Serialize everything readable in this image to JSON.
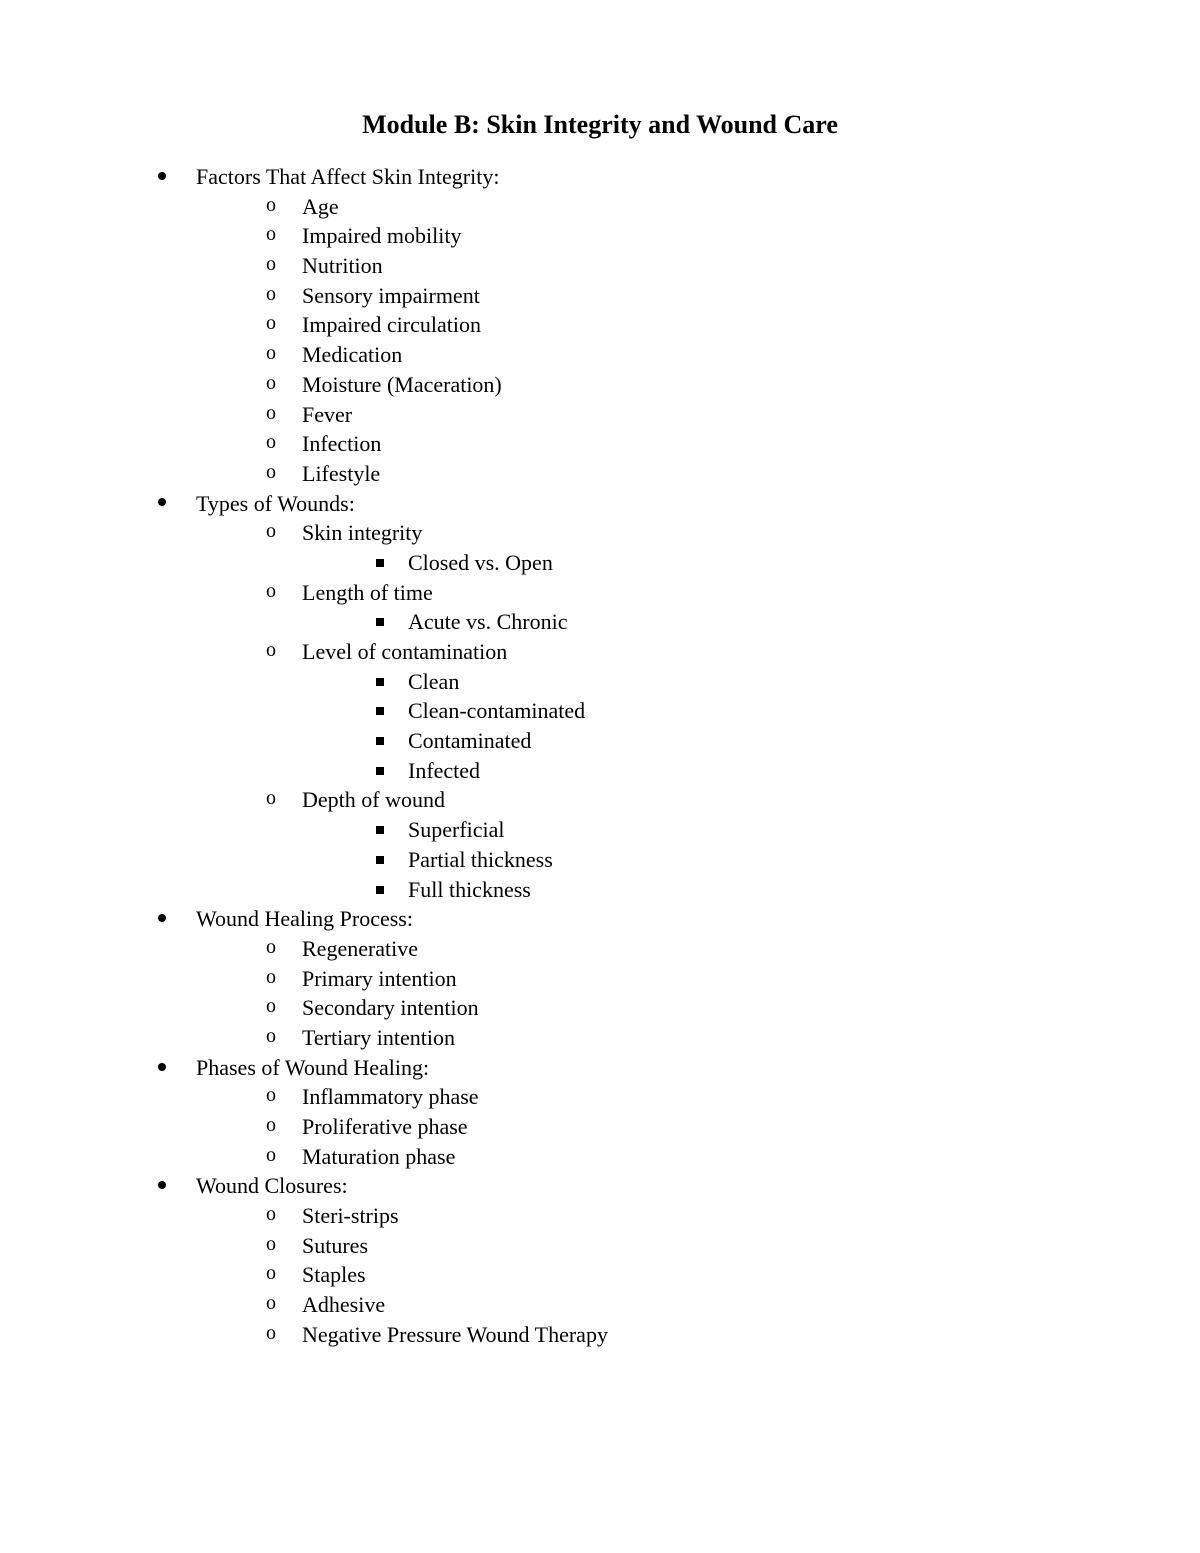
{
  "title": "Module B: Skin Integrity and Wound Care",
  "background_color": "#ffffff",
  "text_color": "#000000",
  "font_family": "Times New Roman",
  "title_fontsize": 26,
  "body_fontsize": 22,
  "sections": [
    {
      "label": "Factors That Affect Skin Integrity:",
      "items": [
        {
          "label": "Age"
        },
        {
          "label": "Impaired mobility"
        },
        {
          "label": "Nutrition"
        },
        {
          "label": "Sensory impairment"
        },
        {
          "label": "Impaired circulation"
        },
        {
          "label": "Medication"
        },
        {
          "label": "Moisture (Maceration)"
        },
        {
          "label": "Fever"
        },
        {
          "label": "Infection"
        },
        {
          "label": "Lifestyle"
        }
      ]
    },
    {
      "label": "Types of Wounds:",
      "items": [
        {
          "label": "Skin integrity",
          "subitems": [
            {
              "label": "Closed vs. Open"
            }
          ]
        },
        {
          "label": "Length of time",
          "subitems": [
            {
              "label": "Acute vs. Chronic"
            }
          ]
        },
        {
          "label": "Level of contamination",
          "subitems": [
            {
              "label": "Clean"
            },
            {
              "label": "Clean-contaminated"
            },
            {
              "label": "Contaminated"
            },
            {
              "label": "Infected"
            }
          ]
        },
        {
          "label": "Depth of wound",
          "subitems": [
            {
              "label": "Superficial"
            },
            {
              "label": "Partial thickness"
            },
            {
              "label": "Full thickness"
            }
          ]
        }
      ]
    },
    {
      "label": "Wound Healing Process:",
      "items": [
        {
          "label": "Regenerative"
        },
        {
          "label": "Primary intention"
        },
        {
          "label": "Secondary intention"
        },
        {
          "label": "Tertiary intention"
        }
      ]
    },
    {
      "label": "Phases of Wound Healing:",
      "items": [
        {
          "label": "Inflammatory phase"
        },
        {
          "label": "Proliferative phase"
        },
        {
          "label": "Maturation phase"
        }
      ]
    },
    {
      "label": "Wound Closures:",
      "items": [
        {
          "label": "Steri-strips"
        },
        {
          "label": "Sutures"
        },
        {
          "label": "Staples"
        },
        {
          "label": "Adhesive"
        },
        {
          "label": "Negative Pressure Wound Therapy"
        }
      ]
    }
  ]
}
